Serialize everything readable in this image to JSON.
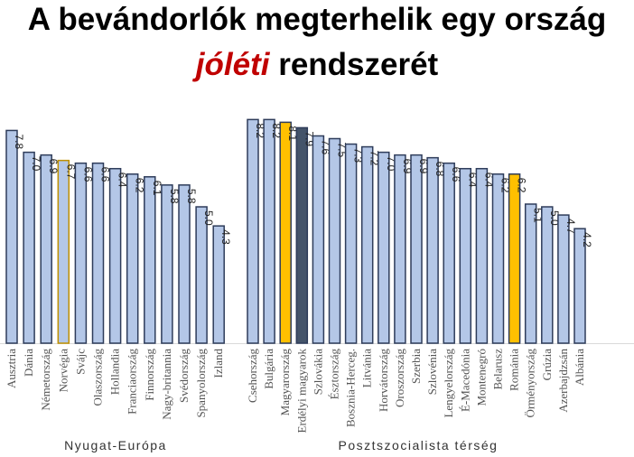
{
  "title": {
    "line1": "A bevándorlók megterhelik egy ország",
    "line2_highlight": "jóléti",
    "line2_rest": " rendszerét"
  },
  "chart_data": {
    "type": "bar",
    "title": "A bevándorlók megterhelik egy ország jóléti rendszerét",
    "ylim": [
      0,
      8.5
    ],
    "grid": false,
    "colors": {
      "default": "#B4C7E7",
      "border": "#2E3C5A",
      "highlight": "#FFC000",
      "dark": "#44546A",
      "norway_border": "#BF9000"
    },
    "groups": [
      {
        "name": "Nyugat-Európa",
        "categories": [
          "Ausztria",
          "Dánia",
          "Németország",
          "Norvégia",
          "Svájc",
          "Olaszország",
          "Hollandia",
          "Franciaország",
          "Finnország",
          "Nagy-britannia",
          "Svédország",
          "Spanyolország",
          "Izland"
        ],
        "values": [
          7.8,
          7.0,
          6.9,
          6.7,
          6.6,
          6.6,
          6.4,
          6.2,
          6.1,
          5.8,
          5.8,
          5.0,
          4.3
        ],
        "styles": [
          "default",
          "default",
          "default",
          "outlined",
          "default",
          "default",
          "default",
          "default",
          "default",
          "default",
          "default",
          "default",
          "default"
        ]
      },
      {
        "name": "Posztszocialista térség",
        "categories": [
          "Csehország",
          "Bulgária",
          "Magyarország",
          "Erdélyi magyarok",
          "Szlovákia",
          "Észtország",
          "Bosznia-Herceg.",
          "Litvánia",
          "Horvátország",
          "Oroszország",
          "Szerbia",
          "Szlovénia",
          "Lengyelország",
          "É-Macedónia",
          "Montenegró",
          "Belarusz",
          "Románia",
          "Örményország",
          "Grúzia",
          "Azerbajdzsán",
          "Albánia"
        ],
        "values": [
          8.2,
          8.2,
          8.1,
          7.9,
          7.6,
          7.5,
          7.3,
          7.2,
          7.0,
          6.9,
          6.9,
          6.8,
          6.6,
          6.4,
          6.4,
          6.2,
          6.2,
          5.1,
          5.0,
          4.7,
          4.2
        ],
        "styles": [
          "default",
          "default",
          "highlight",
          "dark",
          "default",
          "default",
          "default",
          "default",
          "default",
          "default",
          "default",
          "default",
          "default",
          "default",
          "default",
          "default",
          "highlight",
          "default",
          "default",
          "default",
          "default"
        ]
      }
    ]
  }
}
